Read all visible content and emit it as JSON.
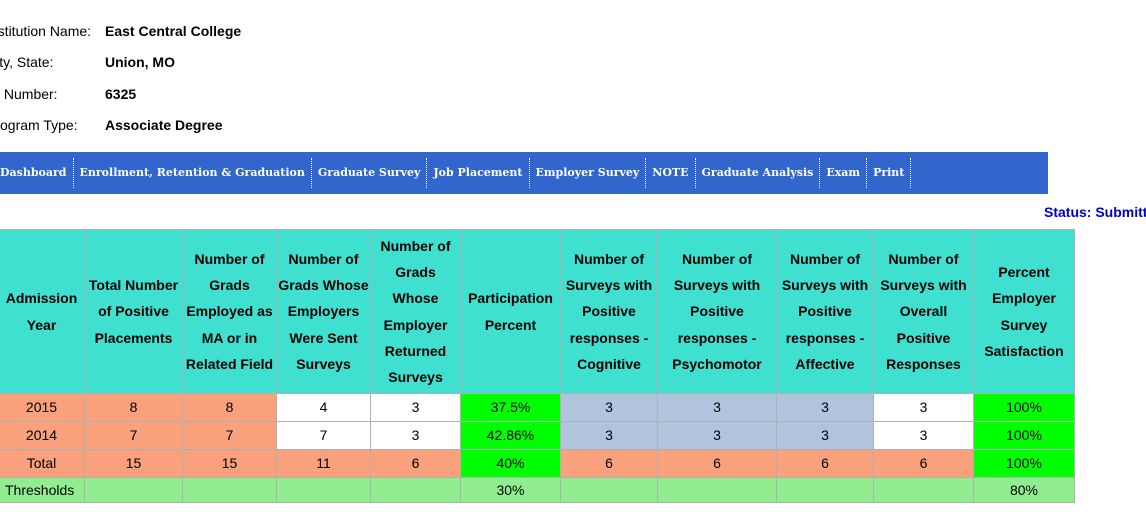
{
  "institution": {
    "name_label": "Institution Name:",
    "name": "East Central College",
    "city_label": "City, State:",
    "city": "Union, MO",
    "id_label": "ID Number:",
    "id": "6325",
    "type_label": "Program Type:",
    "type": "Associate Degree"
  },
  "nav": {
    "items": [
      "Dashboard",
      "Enrollment, Retention & Graduation",
      "Graduate Survey",
      "Job Placement",
      "Employer Survey",
      "NOTE",
      "Graduate Analysis",
      "Exam",
      "Print"
    ]
  },
  "status": "Status: Submitted",
  "table": {
    "headers": [
      "Admission Year",
      "Total Number of Positive Placements",
      "Number of Grads Employed as MA or in Related Field",
      "Number of Grads Whose Employers Were Sent Surveys",
      "Number of Grads Whose Employer Returned Surveys",
      "Participation Percent",
      "Number of Surveys with Positive responses - Cognitive",
      "Number of Surveys with Positive responses - Psychomotor",
      "Number of Surveys with Positive responses - Affective",
      "Number of Surveys with Overall Positive Responses",
      "Percent Employer Survey Satisfaction"
    ],
    "rows": [
      [
        "2015",
        "8",
        "8",
        "4",
        "3",
        "37.5%",
        "3",
        "3",
        "3",
        "3",
        "100%"
      ],
      [
        "2014",
        "7",
        "7",
        "7",
        "3",
        "42.86%",
        "3",
        "3",
        "3",
        "3",
        "100%"
      ],
      [
        "Total",
        "15",
        "15",
        "11",
        "6",
        "40%",
        "6",
        "6",
        "6",
        "6",
        "100%"
      ],
      [
        "Thresholds",
        "",
        "",
        "",
        "",
        "30%",
        "",
        "",
        "",
        "",
        "80%"
      ]
    ]
  },
  "colors": {
    "navbar": "#3366cc",
    "header": "#40e0d0",
    "orange": "#f9a07c",
    "green": "#00ff00",
    "blue": "#b0c4de",
    "light_green": "#90ee90",
    "status": "#0000cc"
  }
}
